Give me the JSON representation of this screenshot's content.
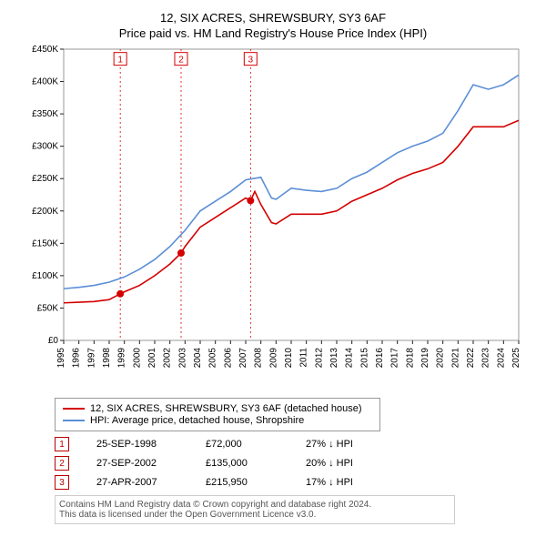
{
  "title_line1": "12, SIX ACRES, SHREWSBURY, SY3 6AF",
  "title_line2": "Price paid vs. HM Land Registry's House Price Index (HPI)",
  "chart": {
    "type": "line",
    "background_color": "#ffffff",
    "border_color": "#999999",
    "grid": false,
    "x_years": [
      1995,
      1996,
      1997,
      1998,
      1999,
      2000,
      2001,
      2002,
      2003,
      2004,
      2005,
      2006,
      2007,
      2008,
      2009,
      2010,
      2011,
      2012,
      2013,
      2014,
      2015,
      2016,
      2017,
      2018,
      2019,
      2020,
      2021,
      2022,
      2023,
      2024,
      2025
    ],
    "xlim": [
      1995,
      2025
    ],
    "ylim": [
      0,
      450000
    ],
    "ytick_step": 50000,
    "ytick_labels": [
      "£0",
      "£50K",
      "£100K",
      "£150K",
      "£200K",
      "£250K",
      "£300K",
      "£350K",
      "£400K",
      "£450K"
    ],
    "xtick_rotate": -90,
    "xtick_fontsize": 10,
    "ytick_fontsize": 10,
    "series": [
      {
        "name": "price_paid",
        "color": "#d40000",
        "width": 1.6,
        "data": [
          [
            1995,
            58000
          ],
          [
            1996,
            59000
          ],
          [
            1997,
            60000
          ],
          [
            1998,
            63000
          ],
          [
            1998.73,
            72000
          ],
          [
            1999,
            75000
          ],
          [
            2000,
            85000
          ],
          [
            2001,
            100000
          ],
          [
            2002,
            118000
          ],
          [
            2002.74,
            135000
          ],
          [
            2003,
            145000
          ],
          [
            2004,
            175000
          ],
          [
            2005,
            190000
          ],
          [
            2006,
            205000
          ],
          [
            2007,
            220000
          ],
          [
            2007.32,
            215950
          ],
          [
            2007.6,
            230000
          ],
          [
            2008,
            210000
          ],
          [
            2008.7,
            182000
          ],
          [
            2009,
            180000
          ],
          [
            2010,
            195000
          ],
          [
            2011,
            195000
          ],
          [
            2012,
            195000
          ],
          [
            2013,
            200000
          ],
          [
            2014,
            215000
          ],
          [
            2015,
            225000
          ],
          [
            2016,
            235000
          ],
          [
            2017,
            248000
          ],
          [
            2018,
            258000
          ],
          [
            2019,
            265000
          ],
          [
            2020,
            275000
          ],
          [
            2021,
            300000
          ],
          [
            2022,
            330000
          ],
          [
            2023,
            330000
          ],
          [
            2024,
            330000
          ],
          [
            2025,
            340000
          ]
        ]
      },
      {
        "name": "hpi",
        "color": "#5b8fd6",
        "width": 1.6,
        "data": [
          [
            1995,
            80000
          ],
          [
            1996,
            82000
          ],
          [
            1997,
            85000
          ],
          [
            1998,
            90000
          ],
          [
            1999,
            98000
          ],
          [
            2000,
            110000
          ],
          [
            2001,
            125000
          ],
          [
            2002,
            145000
          ],
          [
            2003,
            170000
          ],
          [
            2004,
            200000
          ],
          [
            2005,
            215000
          ],
          [
            2006,
            230000
          ],
          [
            2007,
            248000
          ],
          [
            2008,
            252000
          ],
          [
            2008.7,
            220000
          ],
          [
            2009,
            218000
          ],
          [
            2010,
            235000
          ],
          [
            2011,
            232000
          ],
          [
            2012,
            230000
          ],
          [
            2013,
            235000
          ],
          [
            2014,
            250000
          ],
          [
            2015,
            260000
          ],
          [
            2016,
            275000
          ],
          [
            2017,
            290000
          ],
          [
            2018,
            300000
          ],
          [
            2019,
            308000
          ],
          [
            2020,
            320000
          ],
          [
            2021,
            355000
          ],
          [
            2022,
            395000
          ],
          [
            2023,
            388000
          ],
          [
            2024,
            395000
          ],
          [
            2025,
            410000
          ]
        ]
      }
    ],
    "event_lines": [
      {
        "x": 1998.73,
        "num": "1",
        "label_y": 435000
      },
      {
        "x": 2002.74,
        "num": "2",
        "label_y": 435000
      },
      {
        "x": 2007.32,
        "num": "3",
        "label_y": 435000
      }
    ],
    "event_line_color": "#d40000",
    "event_line_dash": "2,3",
    "marker_color": "#d40000",
    "marker_radius": 4
  },
  "legend": {
    "items": [
      {
        "color": "#d40000",
        "label": "12, SIX ACRES, SHREWSBURY, SY3 6AF (detached house)"
      },
      {
        "color": "#5b8fd6",
        "label": "HPI: Average price, detached house, Shropshire"
      }
    ]
  },
  "events": [
    {
      "num": "1",
      "date": "25-SEP-1998",
      "price": "£72,000",
      "delta": "27% ↓ HPI"
    },
    {
      "num": "2",
      "date": "27-SEP-2002",
      "price": "£135,000",
      "delta": "20% ↓ HPI"
    },
    {
      "num": "3",
      "date": "27-APR-2007",
      "price": "£215,950",
      "delta": "17% ↓ HPI"
    }
  ],
  "footer_line1": "Contains HM Land Registry data © Crown copyright and database right 2024.",
  "footer_line2": "This data is licensed under the Open Government Licence v3.0."
}
